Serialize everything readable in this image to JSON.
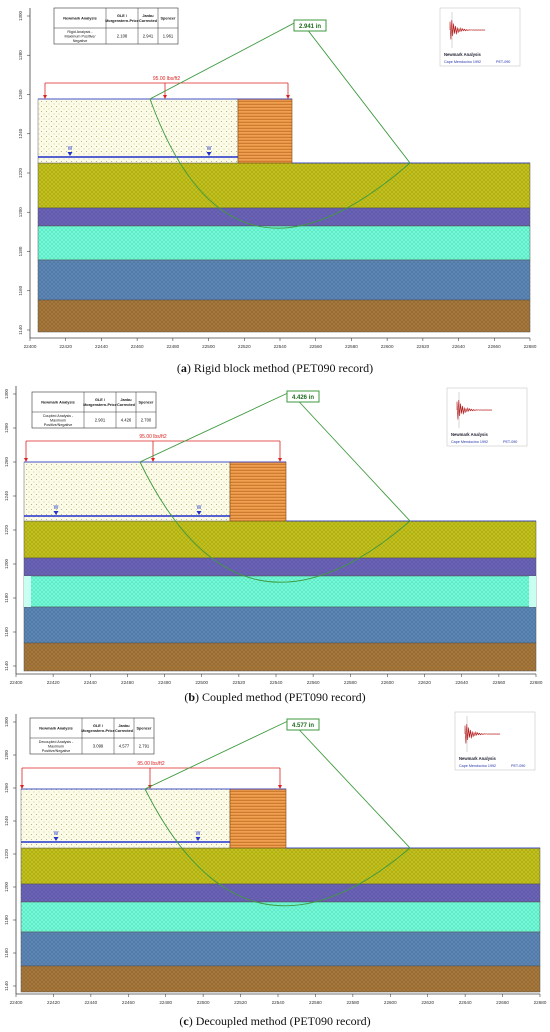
{
  "panels": [
    {
      "caption": {
        "letter": "a",
        "text": "Rigid block method (PET090 record)"
      },
      "table": {
        "headers": [
          "Newmark Analysis",
          "GLE / Morgenstern-Price",
          "Janbu Corrected",
          "Spencer"
        ],
        "row_label": "Rigid Analysis - Maximum Positive/ Negative",
        "values": [
          "2.108",
          "2.941",
          "1.961"
        ]
      },
      "displacement_label": "2.941 in",
      "load_label": "95.00 lbs/ft2",
      "inset": {
        "title": "Newmark Analysis",
        "record": "Cape Mendocino 1992",
        "station": "PET-090"
      },
      "x_ticks": [
        "22400",
        "22420",
        "22440",
        "22460",
        "22480",
        "22500",
        "22520",
        "22540",
        "22560",
        "22580",
        "22600",
        "22620",
        "22640",
        "22660",
        "22680"
      ],
      "y_ticks": [
        "1300",
        "1280",
        "1260",
        "1240",
        "1220",
        "1200",
        "1180",
        "1160",
        "1140"
      ]
    },
    {
      "caption": {
        "letter": "b",
        "text": "Coupled method (PET090 record)"
      },
      "table": {
        "headers": [
          "Newmark Analysis",
          "GLE / Morgenstern-Price",
          "Janbu Corrected",
          "Spencer"
        ],
        "row_label": "Coupled Analysis - Maximum Positive/Negative",
        "values": [
          "2.901",
          "4.426",
          "2.700"
        ]
      },
      "displacement_label": "4.426 in",
      "load_label": "95.00 lbs/ft2",
      "inset": {
        "title": "Newmark Analysis",
        "record": "Cape Mendocino 1992",
        "station": "PET-090"
      },
      "x_ticks": [
        "22400",
        "22420",
        "22440",
        "22460",
        "22480",
        "22500",
        "22520",
        "22540",
        "22560",
        "22580",
        "22600",
        "22620",
        "22640",
        "22660",
        "22680"
      ],
      "y_ticks": [
        "1300",
        "1280",
        "1260",
        "1240",
        "1220",
        "1200",
        "1180",
        "1160",
        "1140"
      ]
    },
    {
      "caption": {
        "letter": "c",
        "text": "Decoupled method (PET090 record)"
      },
      "table": {
        "headers": [
          "Newmark Analysis",
          "GLE / Morgenstern-Price",
          "Janbu Corrected",
          "Spencer"
        ],
        "row_label": "Decoupled Analysis - Maximum Positive/Negative",
        "values": [
          "3.099",
          "4.577",
          "2.791"
        ]
      },
      "displacement_label": "4.577 in",
      "load_label": "95.00 lbs/ft2",
      "inset": {
        "title": "Newmark Analysis",
        "record": "Cape Mendocino 1992",
        "station": "PET-090"
      },
      "x_ticks": [
        "22400",
        "22420",
        "22440",
        "22460",
        "22480",
        "22500",
        "22520",
        "22540",
        "22560",
        "22580",
        "22600",
        "22620",
        "22640",
        "22660",
        "22680"
      ],
      "y_ticks": [
        "1300",
        "1280",
        "1260",
        "1240",
        "1220",
        "1200",
        "1180",
        "1160",
        "1140"
      ]
    }
  ],
  "colors": {
    "fill_soil": "#fbfbe8",
    "wall": "#f0a050",
    "yellow_layer": "#c2c01a",
    "purple_layer": "#6b63b8",
    "cyan_layer": "#6ffbd8",
    "blue_layer": "#5b86b6",
    "brown_layer": "#a6773a",
    "slip_surface": "#3f9a3f",
    "water": "#2233cc",
    "load": "#dd2222"
  }
}
